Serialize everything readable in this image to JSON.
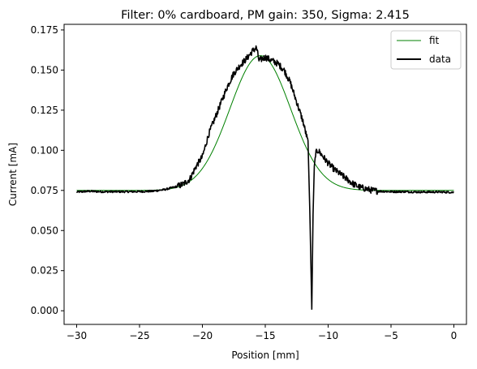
{
  "chart_data": {
    "type": "line",
    "title": "Filter: 0% cardboard, PM gain: 350, Sigma: 2.415",
    "xlabel": "Position [mm]",
    "ylabel": "Current [mA]",
    "xlim": [
      -31,
      1
    ],
    "ylim": [
      -0.0085,
      0.1785
    ],
    "x_ticks": [
      -30,
      -25,
      -20,
      -15,
      -10,
      -5,
      0
    ],
    "x_tick_labels": [
      "−30",
      "−25",
      "−20",
      "−15",
      "−10",
      "−5",
      "0"
    ],
    "y_ticks": [
      0.0,
      0.025,
      0.05,
      0.075,
      0.1,
      0.125,
      0.15,
      0.175
    ],
    "y_tick_labels": [
      "0.000",
      "0.025",
      "0.050",
      "0.075",
      "0.100",
      "0.125",
      "0.150",
      "0.175"
    ],
    "grid": false,
    "legend_position": "top-right",
    "series": [
      {
        "name": "fit",
        "color": "#008000",
        "style": "thin",
        "model": "gaussian",
        "amplitude": 0.084,
        "center": -15.4,
        "sigma": 2.415,
        "offset": 0.075,
        "x_range": [
          -30,
          0
        ]
      },
      {
        "name": "data",
        "color": "#000000",
        "style": "thick",
        "x": [
          -30,
          -29,
          -28,
          -27,
          -26,
          -25,
          -24,
          -23,
          -22.5,
          -22,
          -21.5,
          -21,
          -20.5,
          -20,
          -19.5,
          -19,
          -18.5,
          -18,
          -17.5,
          -17,
          -16.5,
          -16,
          -15.7,
          -15.5,
          -15,
          -14.5,
          -14,
          -13.5,
          -13,
          -12.5,
          -12,
          -11.6,
          -11.45,
          -11.3,
          -11.2,
          -11.1,
          -11.0,
          -10.8,
          -10.5,
          -10,
          -9.5,
          -9,
          -8.5,
          -8,
          -7.5,
          -7,
          -6.5,
          -6,
          -5,
          -4,
          -3,
          -2,
          -1,
          0
        ],
        "y": [
          0.074,
          0.0745,
          0.0742,
          0.0742,
          0.0742,
          0.0743,
          0.0745,
          0.0755,
          0.0765,
          0.0775,
          0.079,
          0.082,
          0.09,
          0.096,
          0.11,
          0.12,
          0.13,
          0.14,
          0.148,
          0.153,
          0.157,
          0.162,
          0.164,
          0.156,
          0.158,
          0.156,
          0.154,
          0.15,
          0.142,
          0.13,
          0.118,
          0.105,
          0.06,
          0.001,
          0.06,
          0.09,
          0.098,
          0.1,
          0.097,
          0.092,
          0.088,
          0.085,
          0.082,
          0.079,
          0.077,
          0.076,
          0.075,
          0.0745,
          0.0742,
          0.0742,
          0.074,
          0.074,
          0.074,
          0.0738
        ]
      }
    ]
  }
}
